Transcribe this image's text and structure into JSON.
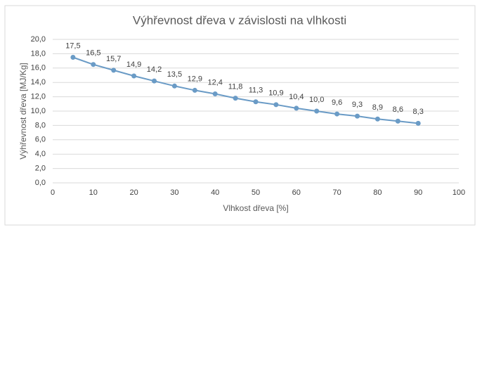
{
  "chart_data": {
    "type": "line",
    "title": "Výhřevnost dřeva v závislosti na vlhkosti",
    "x_label": "Vlhkost dřeva [%]",
    "y_label": "Výhřevnost dřeva [MJ/Kg]",
    "x": [
      5,
      10,
      15,
      20,
      25,
      30,
      35,
      40,
      45,
      50,
      55,
      60,
      65,
      70,
      75,
      80,
      85,
      90
    ],
    "series": [
      {
        "name": "Výhřevnost",
        "color": "#6a9bc6",
        "values": [
          17.5,
          16.5,
          15.7,
          14.9,
          14.2,
          13.5,
          12.9,
          12.4,
          11.8,
          11.3,
          10.9,
          10.4,
          10.0,
          9.6,
          9.3,
          8.9,
          8.6,
          8.3
        ],
        "value_labels": [
          "17,5",
          "16,5",
          "15,7",
          "14,9",
          "14,2",
          "13,5",
          "12,9",
          "12,4",
          "11,8",
          "11,3",
          "10,9",
          "10,4",
          "10,0",
          "9,6",
          "9,3",
          "8,9",
          "8,6",
          "8,3"
        ]
      }
    ],
    "xlim": [
      0,
      100
    ],
    "xticks": [
      0,
      10,
      20,
      30,
      40,
      50,
      60,
      70,
      80,
      90,
      100
    ],
    "ylim": [
      0,
      20
    ],
    "yticks": [
      {
        "value": 0,
        "label": "0,0"
      },
      {
        "value": 2,
        "label": "2,0"
      },
      {
        "value": 4,
        "label": "4,0"
      },
      {
        "value": 6,
        "label": "6,0"
      },
      {
        "value": 8,
        "label": "8,0"
      },
      {
        "value": 10,
        "label": "10,0"
      },
      {
        "value": 12,
        "label": "12,0"
      },
      {
        "value": 14,
        "label": "14,0"
      },
      {
        "value": 16,
        "label": "16,0"
      },
      {
        "value": 18,
        "label": "18,0"
      },
      {
        "value": 20,
        "label": "20,0"
      }
    ],
    "grid": true
  }
}
